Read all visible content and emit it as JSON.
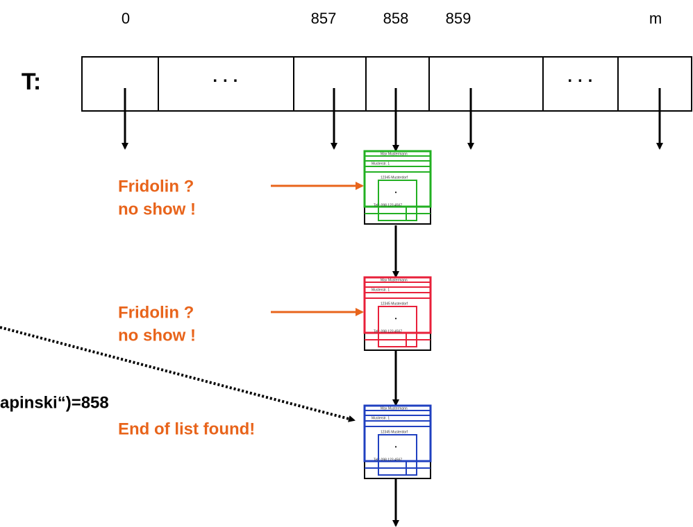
{
  "table": {
    "label": "T:",
    "indices": [
      "0",
      "857",
      "858",
      "859",
      "m"
    ],
    "ellipsis": [
      "· · ·",
      "· · ·"
    ]
  },
  "nodes": [
    {
      "color": "#22b022",
      "note": [
        "Fridolin ?",
        "no show !"
      ]
    },
    {
      "color": "#e8203a",
      "note": [
        "Fridolin ?",
        "no show !"
      ]
    },
    {
      "color": "#2040c0",
      "note": [
        "End of list found!"
      ]
    }
  ],
  "card_lines": [
    "Max Mustermann",
    "Musterstr. 1",
    "12345 Musterdorf",
    "Tel.: 098 123 4567"
  ],
  "hash_call": "apinski“)=858"
}
